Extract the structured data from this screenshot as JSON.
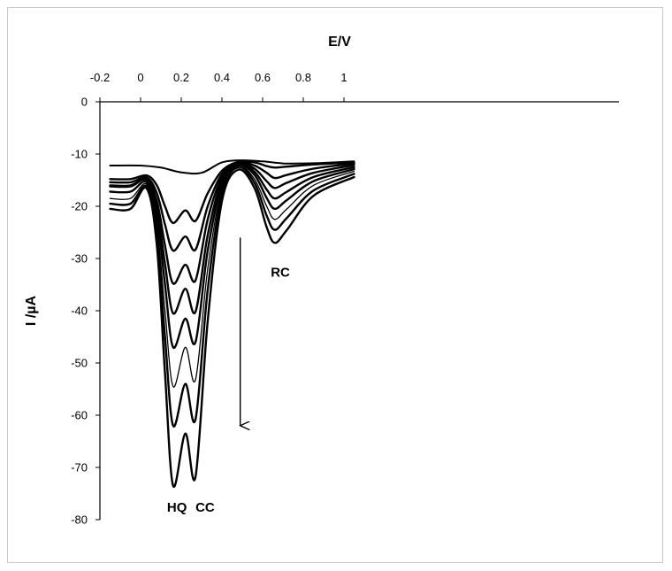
{
  "chart_data": {
    "type": "line",
    "title": "",
    "xlabel": "E/V",
    "ylabel": "I /µA",
    "xlim": [
      -0.2,
      1.1
    ],
    "ylim": [
      -80,
      0
    ],
    "x_ticks": [
      "-0.2",
      "0",
      "0.2",
      "0.4",
      "0.6",
      "0.8",
      "1"
    ],
    "x_tick_values": [
      -0.2,
      0,
      0.2,
      0.4,
      0.6,
      0.8,
      1.0
    ],
    "y_ticks": [
      "0",
      "-10",
      "-20",
      "-30",
      "-40",
      "-50",
      "-60",
      "-70",
      "-80"
    ],
    "y_tick_values": [
      0,
      -10,
      -20,
      -30,
      -40,
      -50,
      -60,
      -70,
      -80
    ],
    "grid": false,
    "x_axis_position": "top",
    "annotations": [
      {
        "text": "HQ",
        "x": 0.13,
        "y": -78.5
      },
      {
        "text": "CC",
        "x": 0.27,
        "y": -78.5
      },
      {
        "text": "RC",
        "x": 0.64,
        "y": -33.5
      }
    ],
    "arrow": {
      "x": 0.49,
      "y_start": -26,
      "y_end": -62
    },
    "series": [
      {
        "stroke_width": 2.0,
        "points": [
          [
            -0.15,
            -12.2
          ],
          [
            0.0,
            -12.2
          ],
          [
            0.1,
            -12.6
          ],
          [
            0.2,
            -13.5
          ],
          [
            0.3,
            -13.6
          ],
          [
            0.4,
            -11.6
          ],
          [
            0.5,
            -11.2
          ],
          [
            0.6,
            -11.4
          ],
          [
            0.7,
            -11.8
          ],
          [
            0.8,
            -11.8
          ],
          [
            0.9,
            -11.7
          ],
          [
            1.05,
            -11.4
          ]
        ]
      },
      {
        "stroke_width": 2.4,
        "points": [
          [
            -0.15,
            -14.8
          ],
          [
            -0.05,
            -14.8
          ],
          [
            0.03,
            -14.1
          ],
          [
            0.08,
            -16.0
          ],
          [
            0.12,
            -20.0
          ],
          [
            0.16,
            -23.2
          ],
          [
            0.22,
            -20.8
          ],
          [
            0.27,
            -22.8
          ],
          [
            0.33,
            -17.5
          ],
          [
            0.4,
            -13.2
          ],
          [
            0.48,
            -11.5
          ],
          [
            0.56,
            -11.6
          ],
          [
            0.62,
            -12.3
          ],
          [
            0.66,
            -12.6
          ],
          [
            0.72,
            -12.4
          ],
          [
            0.85,
            -12.0
          ],
          [
            1.05,
            -11.6
          ]
        ]
      },
      {
        "stroke_width": 2.4,
        "points": [
          [
            -0.15,
            -15.4
          ],
          [
            -0.05,
            -15.4
          ],
          [
            0.03,
            -14.5
          ],
          [
            0.08,
            -17.5
          ],
          [
            0.12,
            -23.5
          ],
          [
            0.16,
            -28.5
          ],
          [
            0.22,
            -25.8
          ],
          [
            0.27,
            -28.3
          ],
          [
            0.33,
            -20.0
          ],
          [
            0.4,
            -13.8
          ],
          [
            0.48,
            -11.6
          ],
          [
            0.56,
            -12.2
          ],
          [
            0.62,
            -13.6
          ],
          [
            0.66,
            -14.6
          ],
          [
            0.72,
            -14.0
          ],
          [
            0.85,
            -12.8
          ],
          [
            1.05,
            -11.8
          ]
        ]
      },
      {
        "stroke_width": 2.4,
        "points": [
          [
            -0.15,
            -16.0
          ],
          [
            -0.05,
            -16.0
          ],
          [
            0.03,
            -14.8
          ],
          [
            0.08,
            -19.0
          ],
          [
            0.12,
            -27.5
          ],
          [
            0.16,
            -34.8
          ],
          [
            0.22,
            -31.2
          ],
          [
            0.27,
            -34.2
          ],
          [
            0.33,
            -22.5
          ],
          [
            0.4,
            -14.4
          ],
          [
            0.48,
            -11.7
          ],
          [
            0.56,
            -12.8
          ],
          [
            0.62,
            -15.2
          ],
          [
            0.66,
            -16.5
          ],
          [
            0.72,
            -15.5
          ],
          [
            0.85,
            -13.6
          ],
          [
            1.05,
            -12.1
          ]
        ]
      },
      {
        "stroke_width": 2.4,
        "points": [
          [
            -0.15,
            -16.2
          ],
          [
            -0.05,
            -16.2
          ],
          [
            0.03,
            -15.0
          ],
          [
            0.08,
            -20.5
          ],
          [
            0.12,
            -31.0
          ],
          [
            0.16,
            -40.5
          ],
          [
            0.22,
            -35.8
          ],
          [
            0.27,
            -40.2
          ],
          [
            0.33,
            -25.5
          ],
          [
            0.4,
            -15.0
          ],
          [
            0.48,
            -11.8
          ],
          [
            0.56,
            -13.4
          ],
          [
            0.62,
            -16.8
          ],
          [
            0.66,
            -18.5
          ],
          [
            0.72,
            -17.2
          ],
          [
            0.85,
            -14.4
          ],
          [
            1.05,
            -12.5
          ]
        ]
      },
      {
        "stroke_width": 2.4,
        "points": [
          [
            -0.15,
            -17.2
          ],
          [
            -0.05,
            -17.2
          ],
          [
            0.03,
            -15.4
          ],
          [
            0.08,
            -22.0
          ],
          [
            0.12,
            -35.0
          ],
          [
            0.16,
            -47.0
          ],
          [
            0.22,
            -41.5
          ],
          [
            0.27,
            -46.0
          ],
          [
            0.33,
            -28.5
          ],
          [
            0.4,
            -15.8
          ],
          [
            0.48,
            -12.0
          ],
          [
            0.56,
            -14.0
          ],
          [
            0.62,
            -18.4
          ],
          [
            0.66,
            -20.5
          ],
          [
            0.72,
            -18.8
          ],
          [
            0.85,
            -15.2
          ],
          [
            1.05,
            -12.9
          ]
        ]
      },
      {
        "stroke_width": 1.3,
        "points": [
          [
            -0.15,
            -18.5
          ],
          [
            -0.05,
            -18.5
          ],
          [
            0.03,
            -15.8
          ],
          [
            0.08,
            -23.8
          ],
          [
            0.12,
            -40.0
          ],
          [
            0.16,
            -54.5
          ],
          [
            0.22,
            -47.0
          ],
          [
            0.27,
            -53.2
          ],
          [
            0.33,
            -32.0
          ],
          [
            0.4,
            -16.6
          ],
          [
            0.48,
            -12.2
          ],
          [
            0.56,
            -14.8
          ],
          [
            0.62,
            -20.0
          ],
          [
            0.66,
            -22.5
          ],
          [
            0.72,
            -20.5
          ],
          [
            0.85,
            -16.0
          ],
          [
            1.05,
            -13.3
          ]
        ]
      },
      {
        "stroke_width": 2.4,
        "points": [
          [
            -0.15,
            -19.5
          ],
          [
            -0.05,
            -19.5
          ],
          [
            0.03,
            -16.2
          ],
          [
            0.08,
            -25.5
          ],
          [
            0.12,
            -45.0
          ],
          [
            0.16,
            -62.0
          ],
          [
            0.22,
            -54.0
          ],
          [
            0.27,
            -60.8
          ],
          [
            0.33,
            -36.0
          ],
          [
            0.4,
            -17.5
          ],
          [
            0.48,
            -12.5
          ],
          [
            0.56,
            -15.5
          ],
          [
            0.62,
            -21.8
          ],
          [
            0.66,
            -24.5
          ],
          [
            0.72,
            -22.2
          ],
          [
            0.85,
            -17.0
          ],
          [
            1.05,
            -13.8
          ]
        ]
      },
      {
        "stroke_width": 2.4,
        "points": [
          [
            -0.15,
            -20.5
          ],
          [
            -0.05,
            -20.5
          ],
          [
            0.03,
            -16.6
          ],
          [
            0.08,
            -27.5
          ],
          [
            0.12,
            -52.0
          ],
          [
            0.16,
            -73.5
          ],
          [
            0.22,
            -63.5
          ],
          [
            0.27,
            -71.8
          ],
          [
            0.33,
            -42.0
          ],
          [
            0.4,
            -19.0
          ],
          [
            0.48,
            -13.0
          ],
          [
            0.56,
            -16.5
          ],
          [
            0.62,
            -24.0
          ],
          [
            0.66,
            -27.0
          ],
          [
            0.72,
            -24.5
          ],
          [
            0.85,
            -18.0
          ],
          [
            1.05,
            -14.4
          ]
        ]
      }
    ]
  }
}
